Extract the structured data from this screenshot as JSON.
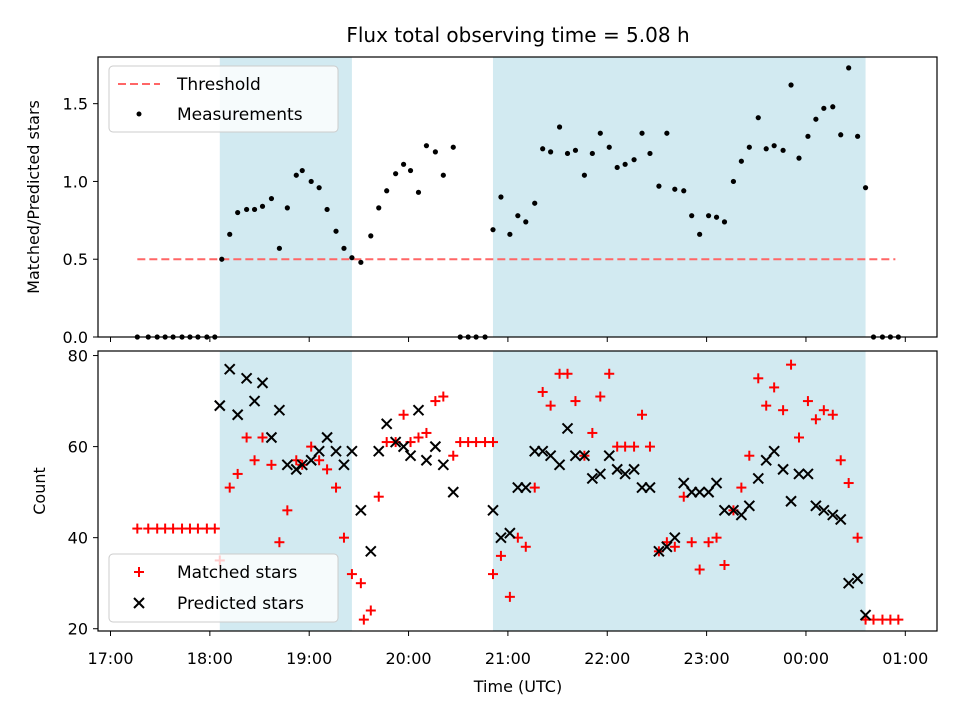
{
  "title": "Flux total observing time = 5.08 h",
  "colors": {
    "shade": "#add8e6",
    "threshold": "#ff6666",
    "measurement": "#000000",
    "matched": "#ff0000",
    "predicted": "#000000"
  },
  "chart_data": [
    {
      "type": "scatter",
      "ylabel": "Matched/Predicted stars",
      "ylim": [
        0,
        1.8
      ],
      "yticks": [
        "0.0",
        "0.5",
        "1.0",
        "1.5"
      ],
      "ytick_values": [
        0,
        0.5,
        1.0,
        1.5
      ],
      "xlim": [
        -0.25,
        8.3
      ],
      "threshold": {
        "value": 0.5,
        "x_start": 0.27,
        "x_end": 7.9
      },
      "shaded_regions": [
        [
          1.1,
          2.43
        ],
        [
          3.85,
          7.6
        ]
      ],
      "legend": [
        "Threshold",
        "Measurements"
      ],
      "legend_position": "upper left",
      "series": [
        {
          "name": "Measurements",
          "x": [
            0.27,
            0.38,
            0.47,
            0.55,
            0.63,
            0.72,
            0.8,
            0.88,
            0.97,
            1.05,
            1.12,
            1.2,
            1.28,
            1.37,
            1.45,
            1.53,
            1.62,
            1.7,
            1.78,
            1.87,
            1.93,
            2.02,
            2.1,
            2.18,
            2.27,
            2.35,
            2.43,
            2.52,
            2.62,
            2.7,
            2.78,
            2.87,
            2.95,
            3.02,
            3.1,
            3.18,
            3.27,
            3.35,
            3.45,
            3.52,
            3.6,
            3.68,
            3.77,
            3.85,
            3.93,
            4.02,
            4.1,
            4.18,
            4.27,
            4.35,
            4.43,
            4.52,
            4.6,
            4.68,
            4.77,
            4.85,
            4.93,
            5.02,
            5.1,
            5.18,
            5.27,
            5.35,
            5.43,
            5.52,
            5.6,
            5.68,
            5.77,
            5.85,
            5.93,
            6.02,
            6.1,
            6.18,
            6.27,
            6.35,
            6.43,
            6.52,
            6.6,
            6.68,
            6.77,
            6.85,
            6.93,
            7.02,
            7.1,
            7.18,
            7.27,
            7.35,
            7.43,
            7.52,
            7.6,
            7.68,
            7.77,
            7.85,
            7.93
          ],
          "y": [
            0,
            0,
            0,
            0,
            0,
            0,
            0,
            0,
            0,
            0,
            0.5,
            0.66,
            0.8,
            0.82,
            0.82,
            0.84,
            0.89,
            0.57,
            0.83,
            1.04,
            1.07,
            1.0,
            0.96,
            0.82,
            0.68,
            0.57,
            0.51,
            0.48,
            0.65,
            0.83,
            0.94,
            1.05,
            1.11,
            1.07,
            0.93,
            1.23,
            1.19,
            1.04,
            1.22,
            0,
            0,
            0,
            0,
            0.69,
            0.9,
            0.66,
            0.78,
            0.74,
            0.86,
            1.21,
            1.19,
            1.35,
            1.18,
            1.2,
            1.04,
            1.18,
            1.31,
            1.22,
            1.09,
            1.11,
            1.14,
            1.31,
            1.18,
            0.97,
            1.31,
            0.95,
            0.94,
            0.78,
            0.66,
            0.78,
            0.77,
            0.74,
            1.0,
            1.13,
            1.22,
            1.41,
            1.21,
            1.23,
            1.2,
            1.62,
            1.15,
            1.29,
            1.4,
            1.47,
            1.48,
            1.3,
            1.73,
            1.29,
            0.96,
            0,
            0,
            0,
            0
          ]
        }
      ]
    },
    {
      "type": "scatter",
      "ylabel": "Count",
      "xlabel": "Time (UTC)",
      "ylim": [
        19.5,
        81
      ],
      "yticks": [
        "20",
        "40",
        "60",
        "80"
      ],
      "ytick_values": [
        20,
        40,
        60,
        80
      ],
      "xlim": [
        -0.25,
        8.3
      ],
      "xticks": [
        "17:00",
        "18:00",
        "19:00",
        "20:00",
        "21:00",
        "22:00",
        "23:00",
        "00:00",
        "01:00"
      ],
      "xtick_values": [
        0,
        1,
        2,
        3,
        4,
        5,
        6,
        7,
        8
      ],
      "shaded_regions": [
        [
          1.1,
          2.43
        ],
        [
          3.85,
          7.6
        ]
      ],
      "legend": [
        "Matched stars",
        "Predicted stars"
      ],
      "legend_position": "lower left",
      "series": [
        {
          "name": "Matched stars",
          "marker": "+",
          "points": [
            [
              0.27,
              42
            ],
            [
              0.38,
              42
            ],
            [
              0.47,
              42
            ],
            [
              0.55,
              42
            ],
            [
              0.63,
              42
            ],
            [
              0.72,
              42
            ],
            [
              0.8,
              42
            ],
            [
              0.88,
              42
            ],
            [
              0.97,
              42
            ],
            [
              1.05,
              42
            ],
            [
              1.1,
              35
            ],
            [
              1.2,
              51
            ],
            [
              1.28,
              54
            ],
            [
              1.37,
              62
            ],
            [
              1.45,
              57
            ],
            [
              1.53,
              62
            ],
            [
              1.62,
              56
            ],
            [
              1.7,
              39
            ],
            [
              1.78,
              46
            ],
            [
              1.87,
              57
            ],
            [
              1.93,
              56
            ],
            [
              2.02,
              60
            ],
            [
              2.1,
              57
            ],
            [
              2.18,
              55
            ],
            [
              2.27,
              51
            ],
            [
              2.35,
              40
            ],
            [
              2.43,
              32
            ],
            [
              2.52,
              30
            ],
            [
              2.55,
              22
            ],
            [
              2.62,
              24
            ],
            [
              2.7,
              49
            ],
            [
              2.78,
              61
            ],
            [
              2.87,
              61
            ],
            [
              2.95,
              67
            ],
            [
              3.02,
              61
            ],
            [
              3.1,
              62
            ],
            [
              3.18,
              63
            ],
            [
              3.27,
              70
            ],
            [
              3.35,
              71
            ],
            [
              3.45,
              58
            ],
            [
              3.52,
              61
            ],
            [
              3.6,
              61
            ],
            [
              3.68,
              61
            ],
            [
              3.77,
              61
            ],
            [
              3.85,
              61
            ],
            [
              3.85,
              32
            ],
            [
              3.93,
              36
            ],
            [
              4.02,
              27
            ],
            [
              4.1,
              40
            ],
            [
              4.18,
              38
            ],
            [
              4.27,
              51
            ],
            [
              4.35,
              72
            ],
            [
              4.43,
              69
            ],
            [
              4.52,
              76
            ],
            [
              4.6,
              76
            ],
            [
              4.68,
              70
            ],
            [
              4.77,
              58
            ],
            [
              4.85,
              63
            ],
            [
              4.93,
              71
            ],
            [
              5.02,
              76
            ],
            [
              5.1,
              60
            ],
            [
              5.18,
              60
            ],
            [
              5.27,
              60
            ],
            [
              5.35,
              67
            ],
            [
              5.43,
              60
            ],
            [
              5.52,
              37
            ],
            [
              5.6,
              39
            ],
            [
              5.68,
              38
            ],
            [
              5.77,
              49
            ],
            [
              5.85,
              39
            ],
            [
              5.93,
              33
            ],
            [
              6.02,
              39
            ],
            [
              6.1,
              40
            ],
            [
              6.18,
              34
            ],
            [
              6.27,
              46
            ],
            [
              6.35,
              51
            ],
            [
              6.43,
              58
            ],
            [
              6.52,
              75
            ],
            [
              6.6,
              69
            ],
            [
              6.68,
              73
            ],
            [
              6.77,
              68
            ],
            [
              6.85,
              78
            ],
            [
              6.93,
              62
            ],
            [
              7.02,
              70
            ],
            [
              7.1,
              66
            ],
            [
              7.18,
              68
            ],
            [
              7.27,
              67
            ],
            [
              7.35,
              57
            ],
            [
              7.43,
              52
            ],
            [
              7.52,
              40
            ],
            [
              7.6,
              22
            ],
            [
              7.68,
              22
            ],
            [
              7.77,
              22
            ],
            [
              7.85,
              22
            ],
            [
              7.93,
              22
            ]
          ]
        },
        {
          "name": "Predicted stars",
          "marker": "x",
          "points": [
            [
              1.1,
              69
            ],
            [
              1.2,
              77
            ],
            [
              1.28,
              67
            ],
            [
              1.37,
              75
            ],
            [
              1.45,
              70
            ],
            [
              1.53,
              74
            ],
            [
              1.62,
              62
            ],
            [
              1.7,
              68
            ],
            [
              1.78,
              56
            ],
            [
              1.87,
              55
            ],
            [
              1.93,
              56
            ],
            [
              2.02,
              57
            ],
            [
              2.1,
              59
            ],
            [
              2.18,
              62
            ],
            [
              2.27,
              59
            ],
            [
              2.35,
              56
            ],
            [
              2.43,
              59
            ],
            [
              2.52,
              46
            ],
            [
              2.62,
              37
            ],
            [
              2.7,
              59
            ],
            [
              2.78,
              65
            ],
            [
              2.87,
              61
            ],
            [
              2.95,
              60
            ],
            [
              3.02,
              58
            ],
            [
              3.1,
              68
            ],
            [
              3.18,
              57
            ],
            [
              3.27,
              60
            ],
            [
              3.35,
              56
            ],
            [
              3.45,
              50
            ],
            [
              3.85,
              46
            ],
            [
              3.93,
              40
            ],
            [
              4.02,
              41
            ],
            [
              4.1,
              51
            ],
            [
              4.18,
              51
            ],
            [
              4.27,
              59
            ],
            [
              4.35,
              59
            ],
            [
              4.43,
              58
            ],
            [
              4.52,
              56
            ],
            [
              4.6,
              64
            ],
            [
              4.68,
              58
            ],
            [
              4.77,
              58
            ],
            [
              4.85,
              53
            ],
            [
              4.93,
              54
            ],
            [
              5.02,
              58
            ],
            [
              5.1,
              55
            ],
            [
              5.18,
              54
            ],
            [
              5.27,
              55
            ],
            [
              5.35,
              51
            ],
            [
              5.43,
              51
            ],
            [
              5.52,
              37
            ],
            [
              5.6,
              38
            ],
            [
              5.68,
              40
            ],
            [
              5.77,
              52
            ],
            [
              5.85,
              50
            ],
            [
              5.93,
              50
            ],
            [
              6.02,
              50
            ],
            [
              6.1,
              52
            ],
            [
              6.18,
              46
            ],
            [
              6.27,
              46
            ],
            [
              6.35,
              45
            ],
            [
              6.43,
              47
            ],
            [
              6.52,
              53
            ],
            [
              6.6,
              57
            ],
            [
              6.68,
              59
            ],
            [
              6.77,
              55
            ],
            [
              6.85,
              48
            ],
            [
              6.93,
              54
            ],
            [
              7.02,
              54
            ],
            [
              7.1,
              47
            ],
            [
              7.18,
              46
            ],
            [
              7.27,
              45
            ],
            [
              7.35,
              44
            ],
            [
              7.43,
              30
            ],
            [
              7.52,
              31
            ],
            [
              7.6,
              23
            ]
          ]
        }
      ]
    }
  ]
}
